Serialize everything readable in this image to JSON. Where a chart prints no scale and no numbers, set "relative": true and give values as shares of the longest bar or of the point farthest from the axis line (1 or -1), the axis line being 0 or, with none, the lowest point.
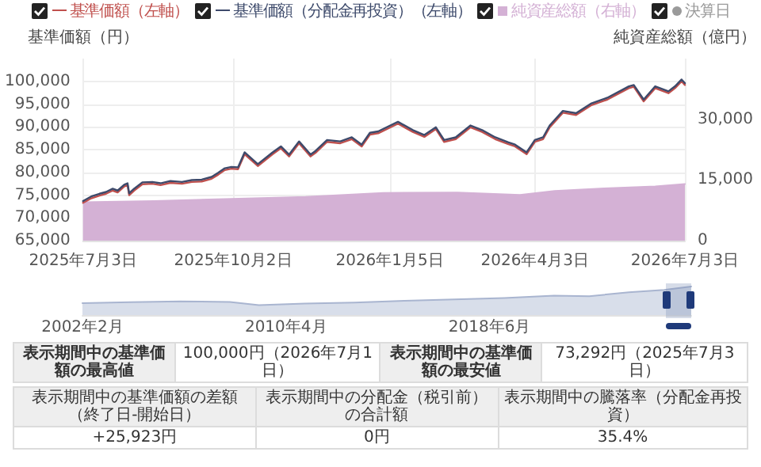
{
  "chart_data": [
    {
      "type": "line",
      "ylabel": "基準価額（円）",
      "y2label": "純資産総額（億円）",
      "legend": "top",
      "grid": true,
      "xlim": [
        "2025-07-03",
        "2026-07-03"
      ],
      "xticks": [
        {
          "value": "2025-07-03",
          "label": "2025年7月3日"
        },
        {
          "value": "2025-10-02",
          "label": "2025年10月2日"
        },
        {
          "value": "2026-01-05",
          "label": "2026年1月5日"
        },
        {
          "value": "2026-04-03",
          "label": "2026年4月3日"
        },
        {
          "value": "2026-07-03",
          "label": "2026年7月3日"
        }
      ],
      "ylim": [
        65000,
        105000
      ],
      "yticks": [
        {
          "value": 65000,
          "label": "65,000"
        },
        {
          "value": 70000,
          "label": "70,000"
        },
        {
          "value": 75000,
          "label": "75,000"
        },
        {
          "value": 80000,
          "label": "80,000"
        },
        {
          "value": 85000,
          "label": "85,000"
        },
        {
          "value": 90000,
          "label": "90,000"
        },
        {
          "value": 95000,
          "label": "95,000"
        },
        {
          "value": 100000,
          "label": "100,000"
        }
      ],
      "y2lim": [
        0,
        45000
      ],
      "y2ticks": [
        0,
        {
          "value": 15000,
          "label": "15,000"
        },
        {
          "value": 30000,
          "label": "30,000"
        }
      ],
      "series": [
        {
          "name": "基準価額（左軸）",
          "type": "line",
          "color": "#c0504d",
          "x": [
            "2025-07-03",
            "2025-07-08",
            "2025-07-13",
            "2025-07-17",
            "2025-07-21",
            "2025-07-24",
            "2025-07-28",
            "2025-07-30",
            "2025-07-31",
            "2025-08-03",
            "2025-08-08",
            "2025-08-14",
            "2025-08-19",
            "2025-08-25",
            "2025-09-01",
            "2025-09-07",
            "2025-09-13",
            "2025-09-19",
            "2025-09-23",
            "2025-09-27",
            "2025-10-01",
            "2025-10-05",
            "2025-10-09",
            "2025-10-17",
            "2025-10-26",
            "2025-10-31",
            "2025-11-05",
            "2025-11-11",
            "2025-11-18",
            "2025-11-21",
            "2025-11-28",
            "2025-12-06",
            "2025-12-13",
            "2025-12-19",
            "2025-12-24",
            "2025-12-29",
            "2026-01-10",
            "2026-01-19",
            "2026-01-26",
            "2026-02-02",
            "2026-02-07",
            "2026-02-14",
            "2026-02-23",
            "2026-03-02",
            "2026-03-10",
            "2026-03-18",
            "2026-03-22",
            "2026-03-29",
            "2026-04-03",
            "2026-04-08",
            "2026-04-12",
            "2026-04-20",
            "2026-04-28",
            "2026-05-07",
            "2026-05-17",
            "2026-05-30",
            "2026-06-02",
            "2026-06-08",
            "2026-06-15",
            "2026-06-23",
            "2026-06-27",
            "2026-07-01",
            "2026-07-03"
          ],
          "values": [
            73300,
            74300,
            74900,
            75300,
            76000,
            75600,
            76900,
            77200,
            75000,
            76000,
            77400,
            77500,
            77200,
            77700,
            77500,
            77900,
            78000,
            78600,
            79500,
            80500,
            80800,
            80700,
            84000,
            81400,
            84000,
            85300,
            83500,
            86400,
            83500,
            84300,
            86700,
            86400,
            87300,
            85700,
            88300,
            88600,
            90700,
            88900,
            87800,
            89500,
            86700,
            87300,
            89900,
            88900,
            87300,
            86200,
            85700,
            84000,
            86700,
            87300,
            89900,
            93100,
            92600,
            94700,
            96000,
            98500,
            98800,
            95600,
            98500,
            97400,
            98500,
            100000,
            99200
          ]
        },
        {
          "name": "基準価額（分配金再投資）（左軸）",
          "type": "line",
          "color": "#3d4a6b",
          "x": [
            "2025-07-03",
            "2025-07-08",
            "2025-07-13",
            "2025-07-17",
            "2025-07-21",
            "2025-07-24",
            "2025-07-28",
            "2025-07-30",
            "2025-07-31",
            "2025-08-03",
            "2025-08-08",
            "2025-08-14",
            "2025-08-19",
            "2025-08-25",
            "2025-09-01",
            "2025-09-07",
            "2025-09-13",
            "2025-09-19",
            "2025-09-23",
            "2025-09-27",
            "2025-10-01",
            "2025-10-05",
            "2025-10-09",
            "2025-10-17",
            "2025-10-26",
            "2025-10-31",
            "2025-11-05",
            "2025-11-11",
            "2025-11-18",
            "2025-11-21",
            "2025-11-28",
            "2025-12-06",
            "2025-12-13",
            "2025-12-19",
            "2025-12-24",
            "2025-12-29",
            "2026-01-10",
            "2026-01-19",
            "2026-01-26",
            "2026-02-02",
            "2026-02-07",
            "2026-02-14",
            "2026-02-23",
            "2026-03-02",
            "2026-03-10",
            "2026-03-18",
            "2026-03-22",
            "2026-03-29",
            "2026-04-03",
            "2026-04-08",
            "2026-04-12",
            "2026-04-20",
            "2026-04-28",
            "2026-05-07",
            "2026-05-17",
            "2026-05-30",
            "2026-06-02",
            "2026-06-08",
            "2026-06-15",
            "2026-06-23",
            "2026-06-27",
            "2026-07-01",
            "2026-07-03"
          ],
          "values": [
            73700,
            74700,
            75300,
            75700,
            76400,
            76000,
            77300,
            77600,
            75400,
            76400,
            77800,
            77900,
            77600,
            78100,
            77900,
            78300,
            78400,
            79000,
            79900,
            80900,
            81200,
            81100,
            84400,
            81800,
            84400,
            85700,
            83900,
            86800,
            83900,
            84700,
            87100,
            86800,
            87700,
            86100,
            88700,
            89000,
            91100,
            89300,
            88200,
            89900,
            87100,
            87700,
            90300,
            89300,
            87700,
            86600,
            86100,
            84400,
            87100,
            87700,
            90300,
            93500,
            93000,
            95100,
            96400,
            98900,
            99200,
            96000,
            98900,
            97800,
            98900,
            100400,
            99600
          ]
        },
        {
          "name": "純資産総額（右軸）",
          "type": "area",
          "axis": "y2",
          "color": "#d4b1d5",
          "x": [
            "2025-07-03",
            "2025-08-15",
            "2025-10-01",
            "2025-11-15",
            "2026-01-01",
            "2026-02-15",
            "2026-03-25",
            "2026-04-15",
            "2026-05-15",
            "2026-06-15",
            "2026-07-03"
          ],
          "values": [
            9500,
            9800,
            10300,
            10800,
            11800,
            11900,
            11300,
            12300,
            12900,
            13400,
            14000
          ]
        },
        {
          "name": "決算日",
          "type": "scatter",
          "color": "#9a9a9a"
        }
      ]
    },
    {
      "type": "area",
      "relative": true,
      "xlim": [
        "2002-02-01",
        "2026-07-03"
      ],
      "xticks": [
        {
          "value": "2002-02-01",
          "label": "2002年2月"
        },
        {
          "value": "2010-04-01",
          "label": "2010年4月"
        },
        {
          "value": "2018-06-01",
          "label": "2018年6月"
        }
      ],
      "series": [
        {
          "color": "#a9b5d0",
          "x": [
            "2002-02-01",
            "2004-01-01",
            "2006-01-01",
            "2008-01-01",
            "2009-03-01",
            "2011-01-01",
            "2013-01-01",
            "2015-01-01",
            "2017-01-01",
            "2019-01-01",
            "2021-01-01",
            "2022-06-01",
            "2024-01-01",
            "2025-06-01",
            "2026-07-03"
          ],
          "values": [
            0.42,
            0.45,
            0.48,
            0.46,
            0.35,
            0.4,
            0.44,
            0.5,
            0.55,
            0.6,
            0.68,
            0.66,
            0.8,
            0.88,
            1
          ]
        }
      ]
    },
    {
      "type": "other",
      "annotations": [
        "表示期間中の基準価額の最高値",
        "100,000円（2026年7月1日）",
        "表示期間中の基準価額の最安値",
        "73,292円（2025年7月3日）",
        "表示期間中の基準価額の差額（終了日-開始日）",
        "表示期間中の分配金（税引前）の合計額",
        "表示期間中の騰落率（分配金再投資）",
        "+25,923円",
        "0円",
        "35.4%"
      ]
    }
  ]
}
